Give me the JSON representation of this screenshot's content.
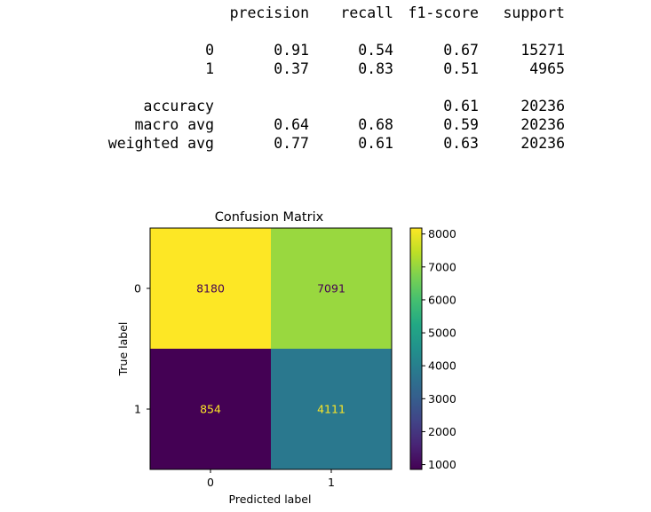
{
  "report": {
    "headers": [
      "precision",
      "recall",
      "f1-score",
      "support"
    ],
    "rows": [
      {
        "label": "0",
        "precision": "0.91",
        "recall": "0.54",
        "f1": "0.67",
        "support": "15271"
      },
      {
        "label": "1",
        "precision": "0.37",
        "recall": "0.83",
        "f1": "0.51",
        "support": "4965"
      },
      {
        "label": "accuracy",
        "precision": "",
        "recall": "",
        "f1": "0.61",
        "support": "20236"
      },
      {
        "label": "macro avg",
        "precision": "0.64",
        "recall": "0.68",
        "f1": "0.59",
        "support": "20236"
      },
      {
        "label": "weighted avg",
        "precision": "0.77",
        "recall": "0.61",
        "f1": "0.63",
        "support": "20236"
      }
    ]
  },
  "chart_data": {
    "type": "heatmap",
    "title": "Confusion Matrix",
    "xlabel": "Predicted label",
    "ylabel": "True label",
    "x_categories": [
      "0",
      "1"
    ],
    "y_categories": [
      "0",
      "1"
    ],
    "values": [
      [
        8180,
        7091
      ],
      [
        854,
        4111
      ]
    ],
    "colormap": "viridis",
    "colorbar": {
      "min": 854,
      "max": 8180,
      "ticks": [
        1000,
        2000,
        3000,
        4000,
        5000,
        6000,
        7000,
        8000
      ]
    },
    "colors": {
      "cell_0_0": "#fde725",
      "cell_0_1": "#99d83f",
      "cell_1_0": "#440154",
      "cell_1_1": "#2a788e",
      "text_on_light": "#440154",
      "text_on_dark": "#fde725"
    }
  }
}
